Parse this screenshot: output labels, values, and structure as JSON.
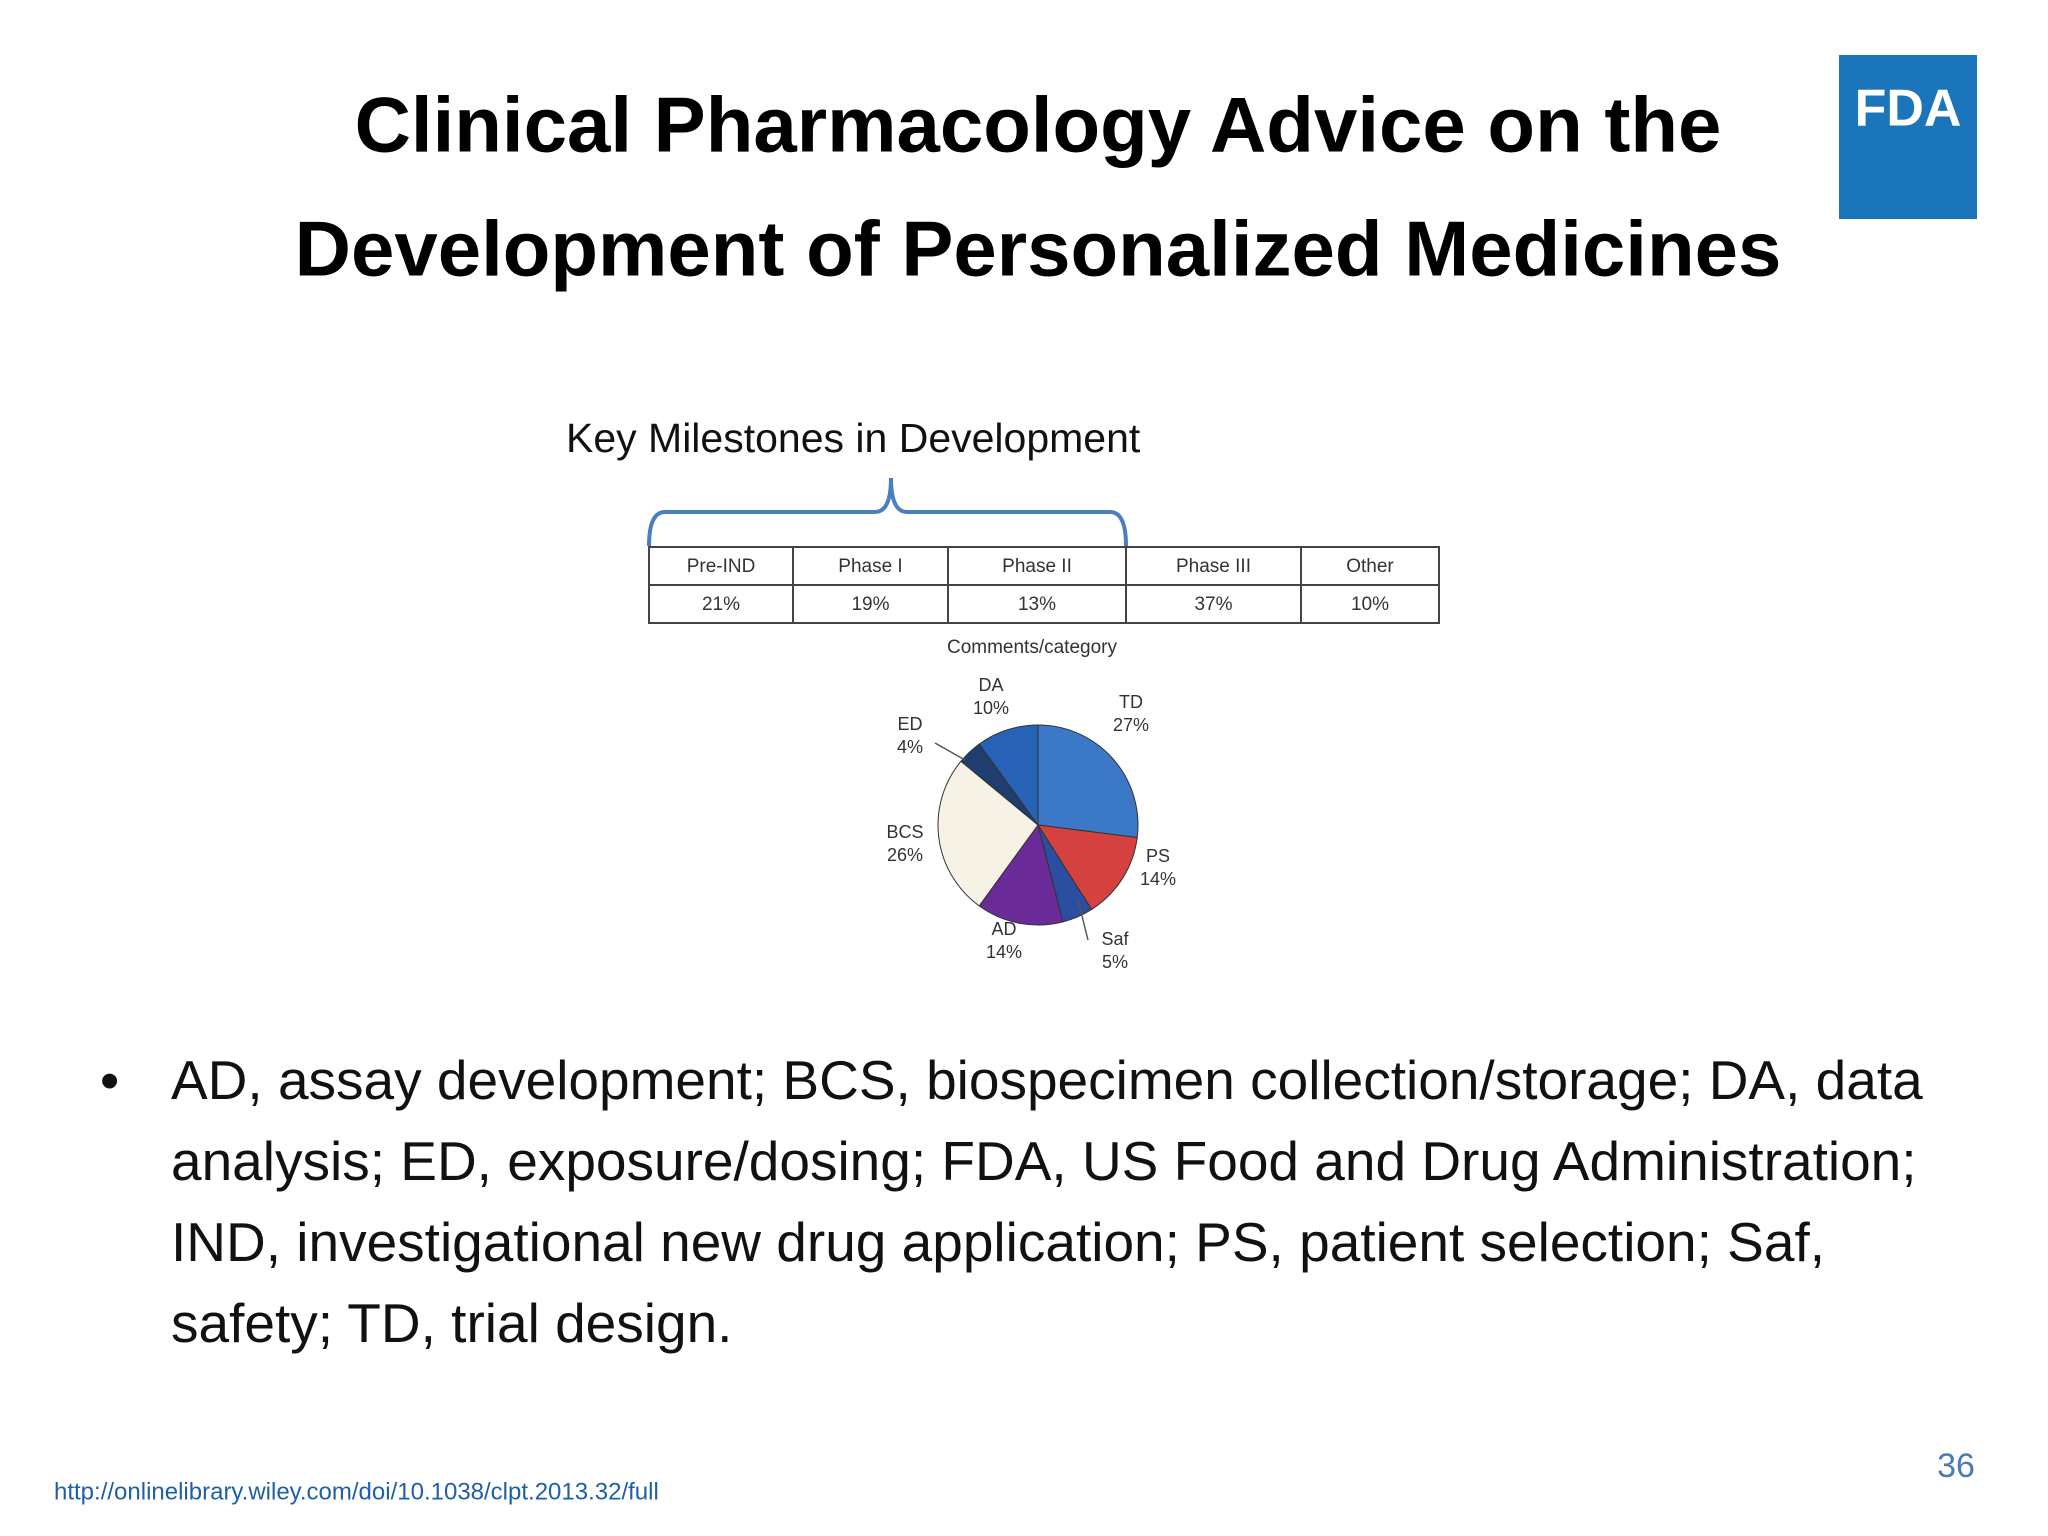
{
  "title": [
    "Clinical Pharmacology Advice on the",
    "Development of Personalized Medicines"
  ],
  "logo": "FDA",
  "milestones_label": "Key Milestones in Development",
  "table": {
    "header": [
      "Pre-IND",
      "Phase I",
      "Phase II",
      "Phase III",
      "Other"
    ],
    "rows": [
      [
        "21%",
        "19%",
        "13%",
        "37%",
        "10%"
      ]
    ]
  },
  "chart_data": {
    "type": "pie",
    "title": "Comments/category",
    "categories": [
      "TD",
      "PS",
      "Saf",
      "AD",
      "BCS",
      "ED",
      "DA"
    ],
    "values": [
      27,
      14,
      5,
      14,
      26,
      4,
      10
    ],
    "value_labels": [
      "27%",
      "14%",
      "5%",
      "14%",
      "26%",
      "4%",
      "10%"
    ],
    "colors": [
      "#3b78c8",
      "#d4413f",
      "#2b4ea0",
      "#6a2a98",
      "#f6f3e6",
      "#1f3d6e",
      "#2862b6"
    ]
  },
  "bullet": "AD, assay development; BCS, biospecimen collection/storage; DA, data analysis; ED, exposure/dosing; FDA, US Food and Drug Administration; IND, investigational new drug application; PS, patient selection; Saf, safety; TD, trial design.",
  "url": "http://onlinelibrary.wiley.com/doi/10.1038/clpt.2013.32/full",
  "page_number": "36"
}
